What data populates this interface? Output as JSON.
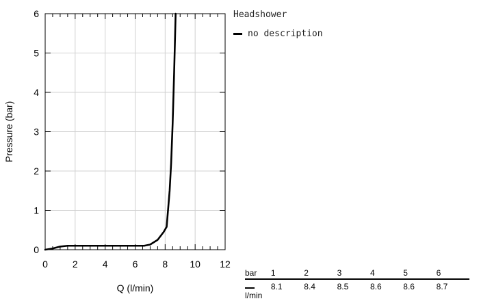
{
  "chart_data": {
    "type": "line",
    "title": "",
    "xlabel": "Q (l/min)",
    "ylabel": "Pressure (bar)",
    "xlim": [
      0,
      12
    ],
    "ylim": [
      0,
      6
    ],
    "x_ticks": [
      "0",
      "2",
      "4",
      "6",
      "8",
      "10",
      "12"
    ],
    "y_ticks": [
      "0",
      "1",
      "2",
      "3",
      "4",
      "5",
      "6"
    ],
    "grid": true,
    "legend_title": "Headshower",
    "legend_position": "right",
    "series": [
      {
        "name": "no description",
        "color": "#000000",
        "points": [
          [
            0,
            0
          ],
          [
            0.5,
            0.03
          ],
          [
            1,
            0.08
          ],
          [
            1.5,
            0.1
          ],
          [
            2,
            0.1
          ],
          [
            4,
            0.1
          ],
          [
            6,
            0.1
          ],
          [
            6.6,
            0.1
          ],
          [
            7,
            0.13
          ],
          [
            7.5,
            0.25
          ],
          [
            7.9,
            0.45
          ],
          [
            8.1,
            0.58
          ],
          [
            8.3,
            1.5
          ],
          [
            8.4,
            2.2
          ],
          [
            8.5,
            3.2
          ],
          [
            8.6,
            4.5
          ],
          [
            8.7,
            6.0
          ]
        ]
      }
    ]
  },
  "table": {
    "head_unit": "bar",
    "body_unit": "l/min",
    "pressures": [
      "1",
      "2",
      "3",
      "4",
      "5",
      "6"
    ],
    "flows": [
      "8.1",
      "8.4",
      "8.5",
      "8.6",
      "8.6",
      "8.7"
    ]
  }
}
